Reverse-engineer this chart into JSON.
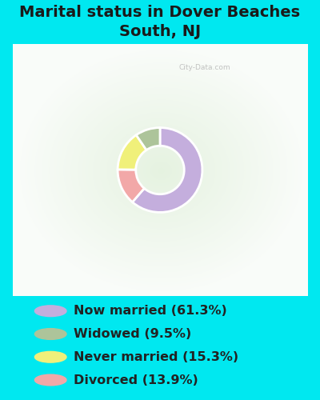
{
  "title": "Marital status in Dover Beaches\nSouth, NJ",
  "values": [
    61.3,
    13.9,
    15.3,
    9.5
  ],
  "colors": [
    "#c4aedd",
    "#f2a8a8",
    "#f0f07a",
    "#adc49a"
  ],
  "legend_labels": [
    "Now married (61.3%)",
    "Widowed (9.5%)",
    "Never married (15.3%)",
    "Divorced (13.9%)"
  ],
  "legend_colors": [
    "#c4aedd",
    "#adc49a",
    "#f0f07a",
    "#f2a8a8"
  ],
  "bg_outer": "#00e8f0",
  "title_fontsize": 14,
  "legend_fontsize": 11.5
}
